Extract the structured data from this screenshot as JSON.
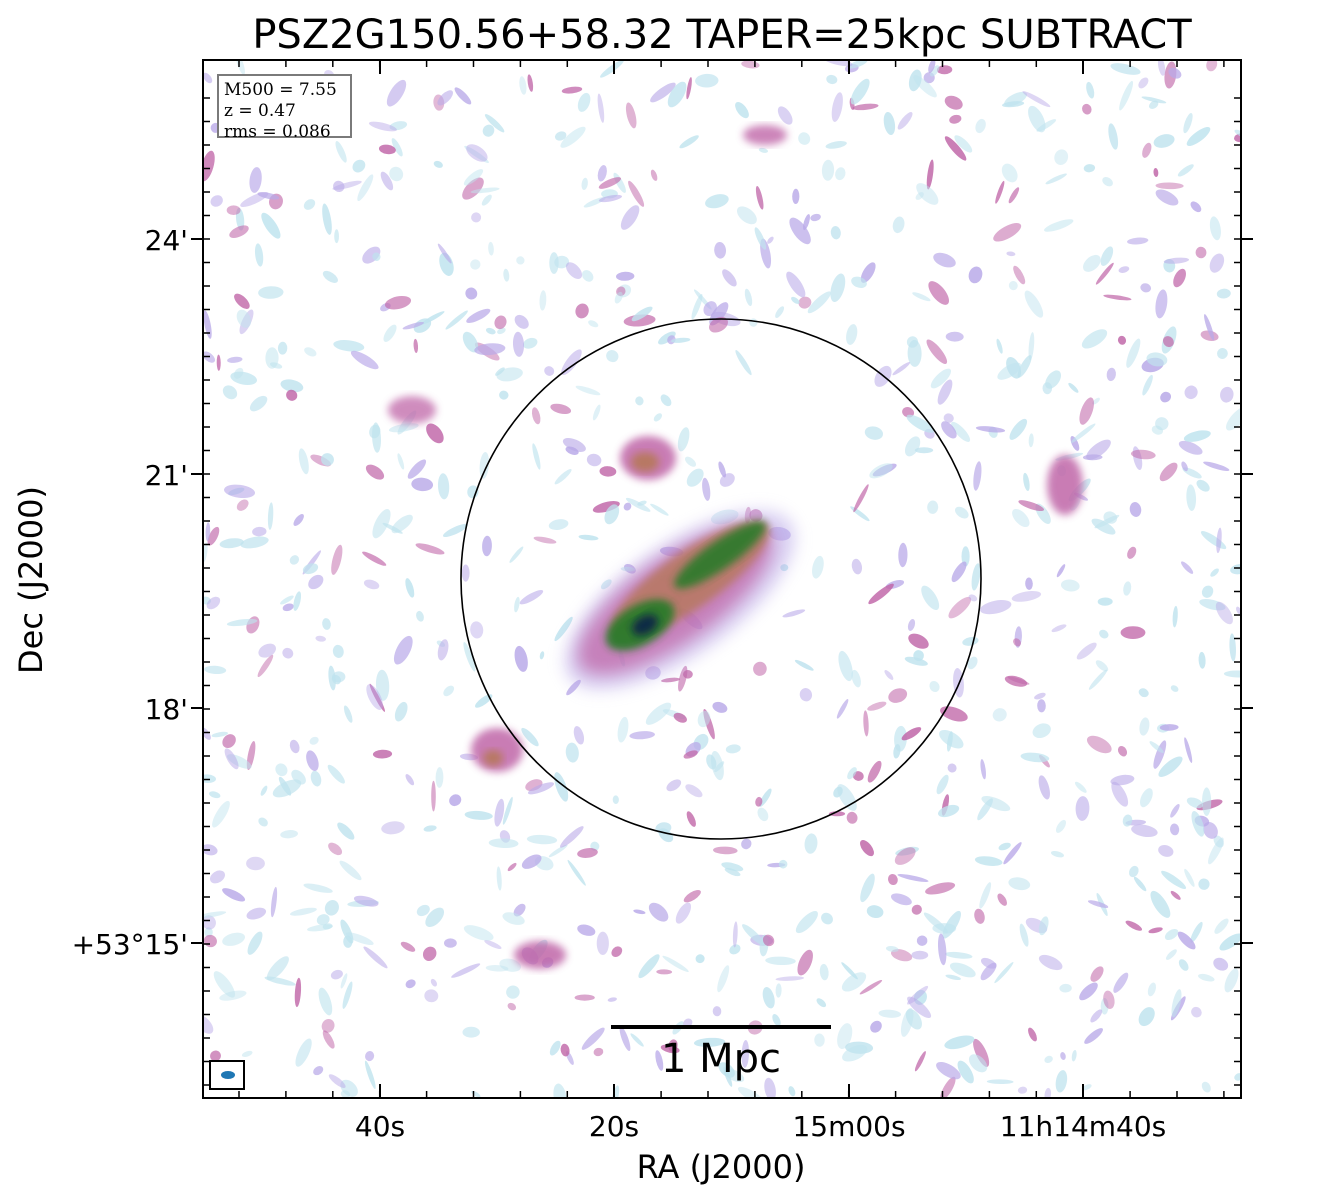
{
  "figure": {
    "title": "PSZ2G150.56+58.32 TAPER=25kpc SUBTRACT",
    "xlabel": "RA (J2000)",
    "ylabel": "Dec (J2000)",
    "x_tick_labels": [
      "40s",
      "20s",
      "15m00s",
      "11h14m40s"
    ],
    "y_tick_labels": [
      "24'",
      "21'",
      "18'",
      "+53°15'"
    ],
    "info": {
      "mass": "M500 = 7.55",
      "redshift": "z = 0.47",
      "rms": "rms = 0.086"
    },
    "scalebar_label": "1 Mpc",
    "colors": {
      "frame": "#000000",
      "circle": "#000000",
      "beam": "#1f77b4",
      "cmap_low": "#bfe3ee",
      "cmap_mid1": "#b9a9e8",
      "cmap_mid2": "#c066a8",
      "cmap_mid3": "#b6785a",
      "cmap_high": "#2c7a2c",
      "cmap_peak": "#0a2a45"
    }
  }
}
